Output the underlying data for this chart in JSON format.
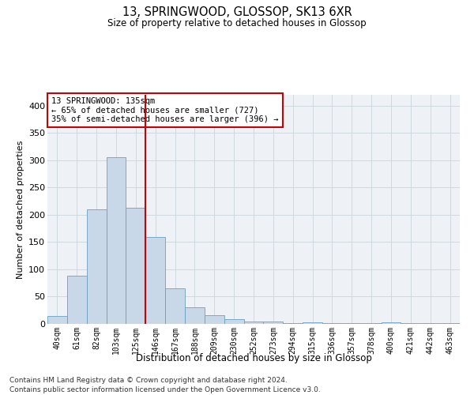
{
  "title1": "13, SPRINGWOOD, GLOSSOP, SK13 6XR",
  "title2": "Size of property relative to detached houses in Glossop",
  "xlabel": "Distribution of detached houses by size in Glossop",
  "ylabel": "Number of detached properties",
  "bar_color": "#c8d8e8",
  "bar_edge_color": "#6a9fc0",
  "categories": [
    "40sqm",
    "61sqm",
    "82sqm",
    "103sqm",
    "125sqm",
    "146sqm",
    "167sqm",
    "188sqm",
    "209sqm",
    "230sqm",
    "252sqm",
    "273sqm",
    "294sqm",
    "315sqm",
    "336sqm",
    "357sqm",
    "378sqm",
    "400sqm",
    "421sqm",
    "442sqm",
    "463sqm"
  ],
  "values": [
    14,
    89,
    210,
    305,
    213,
    160,
    65,
    30,
    16,
    9,
    5,
    4,
    2,
    3,
    2,
    2,
    1,
    3,
    2,
    1,
    2
  ],
  "ylim": [
    0,
    420
  ],
  "yticks": [
    0,
    50,
    100,
    150,
    200,
    250,
    300,
    350,
    400
  ],
  "vline_x": 4.5,
  "vline_color": "#cc0000",
  "annotation_text": "13 SPRINGWOOD: 135sqm\n← 65% of detached houses are smaller (727)\n35% of semi-detached houses are larger (396) →",
  "annotation_box_color": "#ffffff",
  "annotation_edge_color": "#cc0000",
  "grid_color": "#d0d8e0",
  "bg_color": "#eef2f7",
  "footer1": "Contains HM Land Registry data © Crown copyright and database right 2024.",
  "footer2": "Contains public sector information licensed under the Open Government Licence v3.0."
}
